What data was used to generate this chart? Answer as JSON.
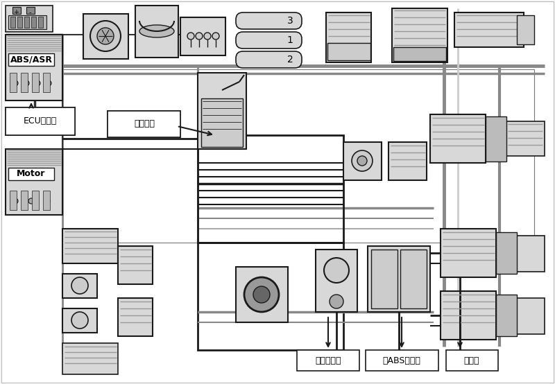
{
  "bg_color": "#f5f5f5",
  "line_color": "#1a1a1a",
  "fill_light": "#d8d8d8",
  "fill_white": "#ffffff",
  "fill_med": "#bbbbbb",
  "labels": {
    "abs_asr": "ABS/ASR",
    "ecu": "ECU控制器",
    "jiao": "脚制动阀",
    "motor": "Motor",
    "zhongjian": "中间继动阀",
    "abs_adj": "双ABS调节器",
    "sensor": "传感器",
    "num1": "1",
    "num2": "2",
    "num3": "3"
  }
}
